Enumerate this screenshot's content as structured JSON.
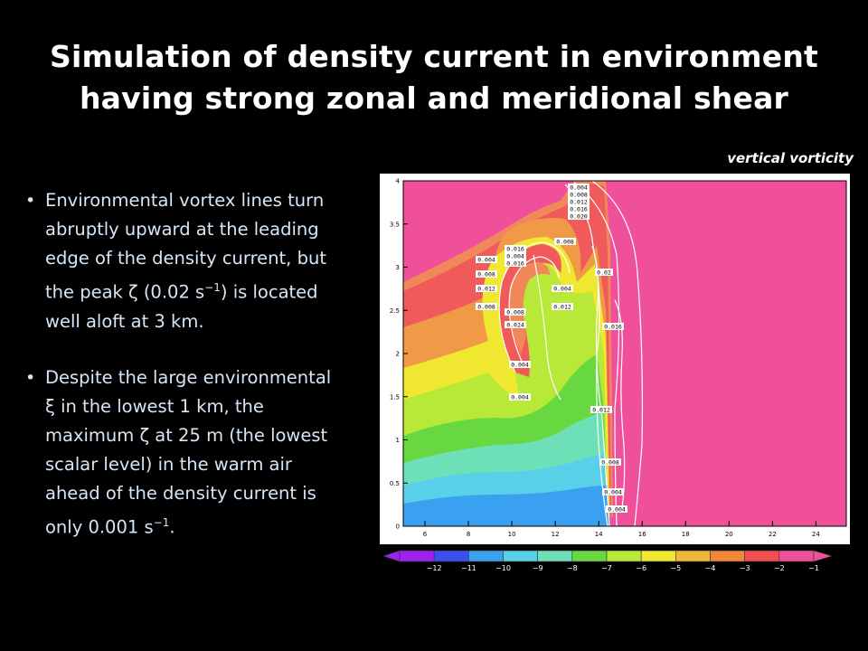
{
  "slide": {
    "title_line1": "Simulation of density current in environment",
    "title_line2": "having strong zonal and meridional shear",
    "plot_caption": "vertical vorticity"
  },
  "bullets": [
    {
      "l1": "Environmental vortex lines turn",
      "l2": "abruptly upward at the leading",
      "l3": "edge of the density current, but",
      "l4a": "the peak ",
      "sym": "ζ",
      "l4b": " (0.02 s",
      "sup": "−1",
      "l4c": ") is located",
      "l5": "well aloft at 3 km."
    },
    {
      "l1": "Despite the large environmental",
      "sym1": "ξ",
      "l2": " in the lowest 1 km, the",
      "l3a": "maximum ",
      "sym2": "ζ",
      "l3b": " at 25 m (the lowest",
      "l4": "scalar level) in the warm air",
      "l5": "ahead of the density current is",
      "l6a": "only 0.001 s",
      "sup": "−1",
      "l6b": "."
    }
  ],
  "figure": {
    "x_ticks": [
      "6",
      "8",
      "10",
      "12",
      "14",
      "16",
      "18",
      "20",
      "22",
      "24"
    ],
    "y_ticks": [
      "0",
      "0.5",
      "1",
      "1.5",
      "2",
      "2.5",
      "3",
      "3.5",
      "4"
    ],
    "contour_labels": [
      "0.004",
      "0.008",
      "0.012",
      "0.016",
      "0.020",
      "0.004",
      "0.008",
      "0.012",
      "0.016",
      "0.004",
      "0.008",
      "0.024",
      "0.016",
      "0.012",
      "0.004",
      "0.008",
      "0.02",
      "0.016",
      "0.004",
      "0.004",
      "0.012",
      "0.008",
      "0.004",
      "0.004",
      "0.008"
    ],
    "colorbar_labels": [
      "−12",
      "−11",
      "−10",
      "−9",
      "−8",
      "−7",
      "−6",
      "−5",
      "−4",
      "−3",
      "−2",
      "−1"
    ],
    "colorbar_colors": [
      "#a020f0",
      "#3c50f0",
      "#3aa0f0",
      "#58d0e8",
      "#6ee0b8",
      "#68d840",
      "#b8e838",
      "#f0e830",
      "#f0b838",
      "#f08838",
      "#f05050",
      "#f0509a"
    ],
    "background_color": "#f0509a"
  }
}
